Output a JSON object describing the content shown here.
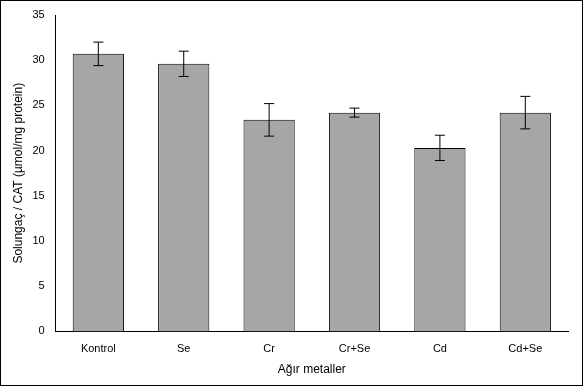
{
  "chart_data": {
    "type": "bar",
    "categories": [
      "Kontrol",
      "Se",
      "Cr",
      "Cr+Se",
      "Cd",
      "Cd+Se"
    ],
    "values": [
      30.7,
      29.6,
      23.4,
      24.2,
      20.3,
      24.2
    ],
    "errors": [
      1.3,
      1.4,
      1.8,
      0.5,
      1.4,
      1.8
    ],
    "color": "#a6a6a6",
    "x_label": "Ağır metaller",
    "y_label": "Solungaç / CAT (µmol/mg protein)",
    "ylim": [
      0,
      35
    ],
    "yticks": [
      0,
      5,
      10,
      15,
      20,
      25,
      30,
      35
    ],
    "grid": false
  }
}
